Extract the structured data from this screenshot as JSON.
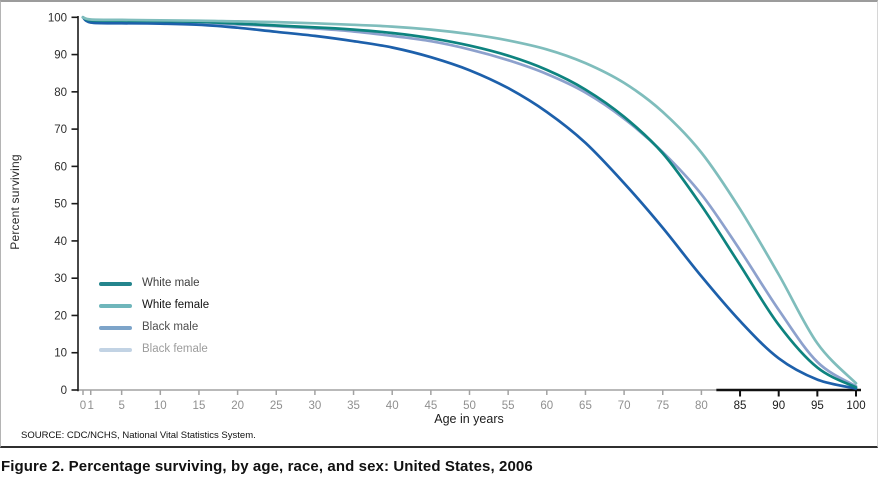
{
  "figure": {
    "source_note": "SOURCE: CDC/NCHS, National Vital Statistics System.",
    "caption": "Figure 2. Percentage surviving, by age, race, and sex: United States, 2006"
  },
  "chart_data": {
    "type": "line",
    "title": "",
    "xlabel": "Age in years",
    "ylabel": "Percent surviving",
    "xlim": [
      0,
      100
    ],
    "ylim": [
      0,
      100
    ],
    "grid": false,
    "legend_position": "inside-left",
    "x_ticks": [
      0,
      1,
      5,
      10,
      15,
      20,
      25,
      30,
      35,
      40,
      45,
      50,
      55,
      60,
      65,
      70,
      75,
      80,
      85,
      90,
      95,
      100
    ],
    "y_ticks": [
      0,
      10,
      20,
      30,
      40,
      50,
      60,
      70,
      80,
      90,
      100
    ],
    "axis_style": {
      "y_axis_color": "#1a1a1a",
      "x_axis_gray_color": "#a2a2a2",
      "x_axis_black_color": "#111111",
      "x_axis_black_from_age": 84,
      "x_tick_gray_label_color": "#8f8f8f",
      "x_tick_black_label_color": "#1a1a1a",
      "y_tick_label_color": "#2e2e2e"
    },
    "x": [
      0,
      1,
      5,
      10,
      15,
      20,
      25,
      30,
      35,
      40,
      45,
      50,
      55,
      60,
      65,
      70,
      75,
      80,
      85,
      90,
      95,
      100
    ],
    "series": [
      {
        "name": "White male",
        "line_color": "#0e837f",
        "legend_color": "#24858d",
        "label_color": "#3f3f3f",
        "values": [
          100,
          99.2,
          99.1,
          99.0,
          98.8,
          98.3,
          97.8,
          97.3,
          96.7,
          95.8,
          94.4,
          92.4,
          89.7,
          85.9,
          80.6,
          73.3,
          63.5,
          49.5,
          33.5,
          17.5,
          6.0,
          0.7
        ]
      },
      {
        "name": "White female",
        "line_color": "#7fbdbc",
        "legend_color": "#6fb6bb",
        "label_color": "#141414",
        "values": [
          100,
          99.4,
          99.3,
          99.2,
          99.1,
          98.9,
          98.7,
          98.4,
          98.0,
          97.5,
          96.7,
          95.5,
          93.8,
          91.4,
          87.7,
          82.4,
          74.6,
          63.7,
          48.5,
          31.0,
          12.5,
          1.8
        ]
      },
      {
        "name": "Black male",
        "line_color": "#1d60ab",
        "legend_color": "#7da4c9",
        "label_color": "#4f4f4f",
        "values": [
          100,
          98.6,
          98.4,
          98.3,
          98.0,
          97.2,
          96.1,
          95.0,
          93.6,
          91.9,
          89.3,
          85.8,
          81.0,
          74.6,
          66.3,
          55.5,
          43.5,
          30.5,
          18.5,
          8.5,
          2.8,
          0.4
        ]
      },
      {
        "name": "Black female",
        "line_color": "#8da1cd",
        "legend_color": "#c2d3e4",
        "label_color": "#9c9c9c",
        "values": [
          100,
          98.8,
          98.7,
          98.6,
          98.4,
          98.1,
          97.6,
          97.0,
          96.2,
          95.0,
          93.6,
          91.4,
          88.5,
          84.8,
          79.8,
          72.8,
          63.8,
          52.5,
          37.5,
          21.5,
          7.5,
          1.0
        ]
      }
    ]
  }
}
